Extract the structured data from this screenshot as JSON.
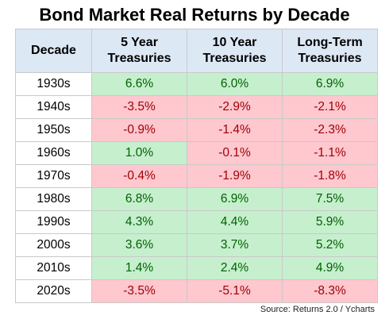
{
  "chart_data": {
    "type": "table",
    "title": "Bond Market Real Returns by Decade",
    "columns": [
      "Decade",
      "5 Year Treasuries",
      "10 Year Treasuries",
      "Long-Term Treasuries"
    ],
    "columns_display": [
      [
        "Decade"
      ],
      [
        "5 Year",
        "Treasuries"
      ],
      [
        "10 Year",
        "Treasuries"
      ],
      [
        "Long-Term",
        "Treasuries"
      ]
    ],
    "rows": [
      {
        "decade": "1930s",
        "values": [
          6.6,
          6.0,
          6.9
        ],
        "labels": [
          "6.6%",
          "6.0%",
          "6.9%"
        ]
      },
      {
        "decade": "1940s",
        "values": [
          -3.5,
          -2.9,
          -2.1
        ],
        "labels": [
          "-3.5%",
          "-2.9%",
          "-2.1%"
        ]
      },
      {
        "decade": "1950s",
        "values": [
          -0.9,
          -1.4,
          -2.3
        ],
        "labels": [
          "-0.9%",
          "-1.4%",
          "-2.3%"
        ]
      },
      {
        "decade": "1960s",
        "values": [
          1.0,
          -0.1,
          -1.1
        ],
        "labels": [
          "1.0%",
          "-0.1%",
          "-1.1%"
        ]
      },
      {
        "decade": "1970s",
        "values": [
          -0.4,
          -1.9,
          -1.8
        ],
        "labels": [
          "-0.4%",
          "-1.9%",
          "-1.8%"
        ]
      },
      {
        "decade": "1980s",
        "values": [
          6.8,
          6.9,
          7.5
        ],
        "labels": [
          "6.8%",
          "6.9%",
          "7.5%"
        ]
      },
      {
        "decade": "1990s",
        "values": [
          4.3,
          4.4,
          5.9
        ],
        "labels": [
          "4.3%",
          "4.4%",
          "5.9%"
        ]
      },
      {
        "decade": "2000s",
        "values": [
          3.6,
          3.7,
          5.2
        ],
        "labels": [
          "3.6%",
          "3.7%",
          "5.2%"
        ]
      },
      {
        "decade": "2010s",
        "values": [
          1.4,
          2.4,
          4.9
        ],
        "labels": [
          "1.4%",
          "2.4%",
          "4.9%"
        ]
      },
      {
        "decade": "2020s",
        "values": [
          -3.5,
          -5.1,
          -8.3
        ],
        "labels": [
          "-3.5%",
          "-5.1%",
          "-8.3%"
        ]
      }
    ],
    "source": "Source: Returns 2.0 / Ycharts",
    "colors": {
      "header_bg": "#dde8f5",
      "positive_bg": "#c6efce",
      "positive_text": "#006100",
      "negative_bg": "#ffc7ce",
      "negative_text": "#9c0006"
    }
  }
}
